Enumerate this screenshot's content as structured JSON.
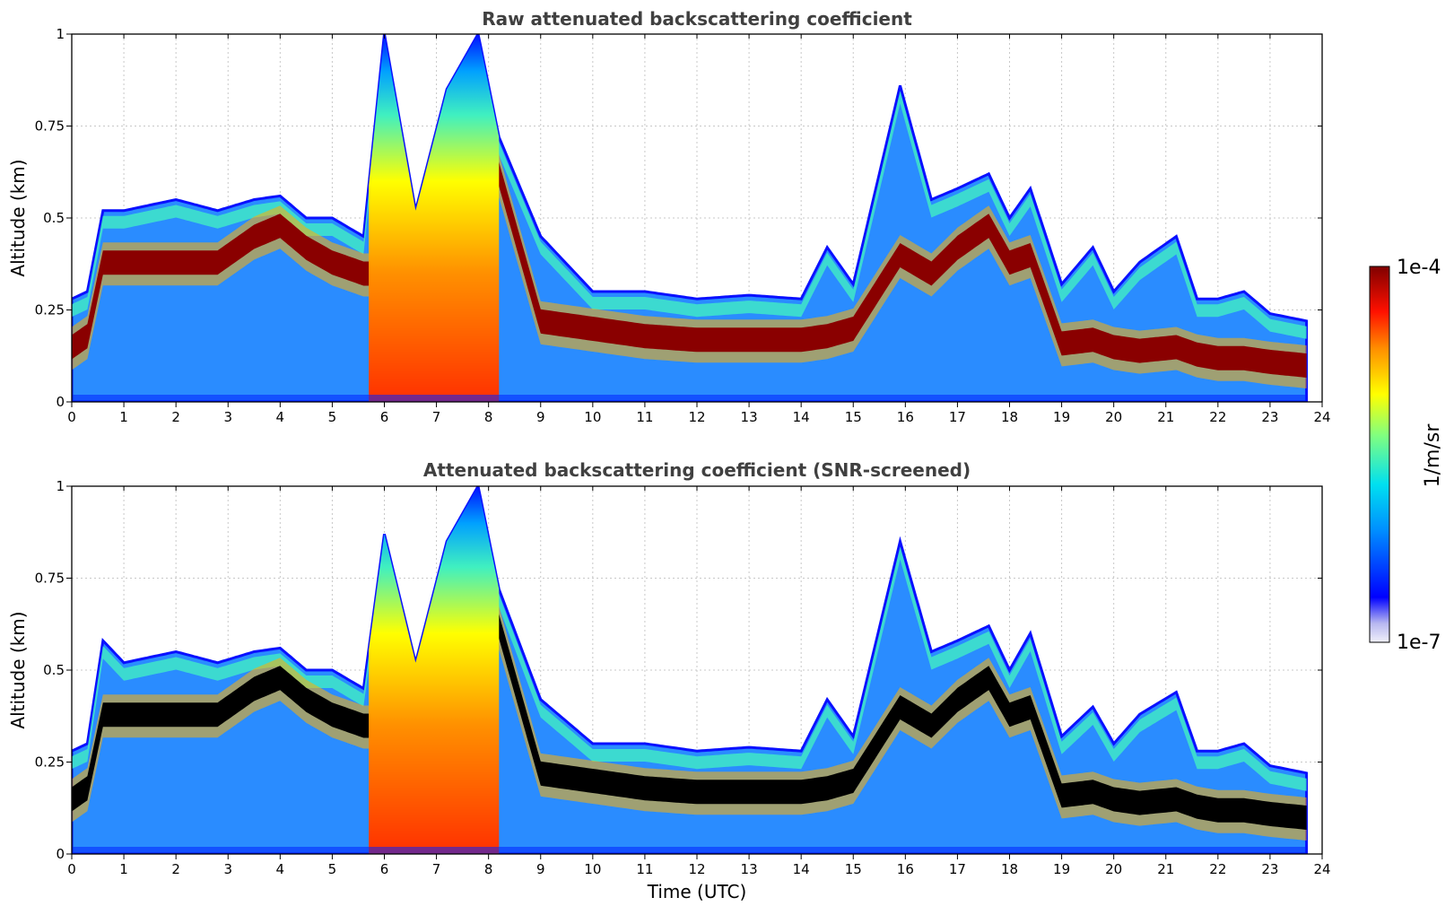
{
  "chart_data": [
    {
      "type": "heatmap",
      "title": "Raw attenuated backscattering coefficient",
      "xlabel": "",
      "ylabel": "Altitude (km)",
      "xlim": [
        0,
        24
      ],
      "ylim": [
        0,
        1
      ],
      "xticks": [
        "0",
        "1",
        "2",
        "3",
        "4",
        "5",
        "6",
        "7",
        "8",
        "9",
        "10",
        "11",
        "12",
        "13",
        "14",
        "15",
        "16",
        "17",
        "18",
        "19",
        "20",
        "21",
        "22",
        "23",
        "24"
      ],
      "yticks": [
        "0",
        "0.25",
        "0.5",
        "0.75",
        "1"
      ],
      "grid": true,
      "colormap": "jet",
      "screened": false,
      "profile": {
        "time_utc": [
          0,
          0.3,
          0.6,
          1,
          2,
          2.8,
          3.5,
          4,
          4.5,
          5,
          5.6,
          6,
          6.6,
          7.2,
          7.8,
          8.2,
          9,
          10,
          11,
          12,
          13,
          14,
          14.5,
          15,
          15.9,
          16.5,
          17,
          17.6,
          18,
          18.4,
          19,
          19.6,
          20,
          20.5,
          21.2,
          21.6,
          22,
          22.5,
          23,
          23.7
        ],
        "top_km": [
          0.28,
          0.3,
          0.52,
          0.52,
          0.55,
          0.52,
          0.55,
          0.56,
          0.5,
          0.5,
          0.45,
          1.0,
          0.52,
          0.85,
          1.0,
          0.72,
          0.45,
          0.3,
          0.3,
          0.28,
          0.29,
          0.28,
          0.42,
          0.32,
          0.86,
          0.55,
          0.58,
          0.62,
          0.5,
          0.58,
          0.32,
          0.42,
          0.3,
          0.38,
          0.45,
          0.28,
          0.28,
          0.3,
          0.24,
          0.22
        ],
        "layer_km": [
          0.15,
          0.18,
          0.38,
          0.38,
          0.38,
          0.38,
          0.45,
          0.48,
          0.42,
          0.38,
          0.35,
          0.35,
          0.35,
          0.4,
          0.68,
          0.62,
          0.22,
          0.2,
          0.18,
          0.17,
          0.17,
          0.17,
          0.18,
          0.2,
          0.4,
          0.35,
          0.42,
          0.48,
          0.38,
          0.4,
          0.16,
          0.17,
          0.15,
          0.14,
          0.15,
          0.13,
          0.12,
          0.12,
          0.11,
          0.1
        ]
      }
    },
    {
      "type": "heatmap",
      "title": "Attenuated backscattering coefficient (SNR-screened)",
      "xlabel": "Time (UTC)",
      "ylabel": "Altitude (km)",
      "xlim": [
        0,
        24
      ],
      "ylim": [
        0,
        1
      ],
      "xticks": [
        "0",
        "1",
        "2",
        "3",
        "4",
        "5",
        "6",
        "7",
        "8",
        "9",
        "10",
        "11",
        "12",
        "13",
        "14",
        "15",
        "16",
        "17",
        "18",
        "19",
        "20",
        "21",
        "22",
        "23",
        "24"
      ],
      "yticks": [
        "0",
        "0.25",
        "0.5",
        "0.75",
        "1"
      ],
      "grid": true,
      "colormap": "jet",
      "screened": true,
      "saturated_color": "#000000",
      "profile": {
        "time_utc": [
          0,
          0.3,
          0.6,
          1,
          2,
          2.8,
          3.5,
          4,
          4.5,
          5,
          5.6,
          6,
          6.6,
          7.2,
          7.8,
          8.2,
          9,
          10,
          11,
          12,
          13,
          14,
          14.5,
          15,
          15.9,
          16.5,
          17,
          17.6,
          18,
          18.4,
          19,
          19.6,
          20,
          20.5,
          21.2,
          21.6,
          22,
          22.5,
          23,
          23.7
        ],
        "top_km": [
          0.28,
          0.3,
          0.58,
          0.52,
          0.55,
          0.52,
          0.55,
          0.56,
          0.5,
          0.5,
          0.45,
          0.87,
          0.52,
          0.85,
          1.0,
          0.72,
          0.42,
          0.3,
          0.3,
          0.28,
          0.29,
          0.28,
          0.42,
          0.32,
          0.85,
          0.55,
          0.58,
          0.62,
          0.5,
          0.6,
          0.32,
          0.4,
          0.3,
          0.38,
          0.44,
          0.28,
          0.28,
          0.3,
          0.24,
          0.22
        ],
        "layer_km": [
          0.15,
          0.18,
          0.38,
          0.38,
          0.38,
          0.38,
          0.45,
          0.48,
          0.42,
          0.38,
          0.35,
          0.35,
          0.35,
          0.4,
          0.68,
          0.62,
          0.22,
          0.2,
          0.18,
          0.17,
          0.17,
          0.17,
          0.18,
          0.2,
          0.4,
          0.35,
          0.42,
          0.48,
          0.38,
          0.4,
          0.16,
          0.17,
          0.15,
          0.14,
          0.15,
          0.13,
          0.12,
          0.12,
          0.11,
          0.1
        ]
      }
    }
  ],
  "colorbar": {
    "label": "1/m/sr",
    "max_label": "1e-4",
    "min_label": "1e-7",
    "scale": "log",
    "range": [
      1e-07,
      0.0001
    ]
  }
}
